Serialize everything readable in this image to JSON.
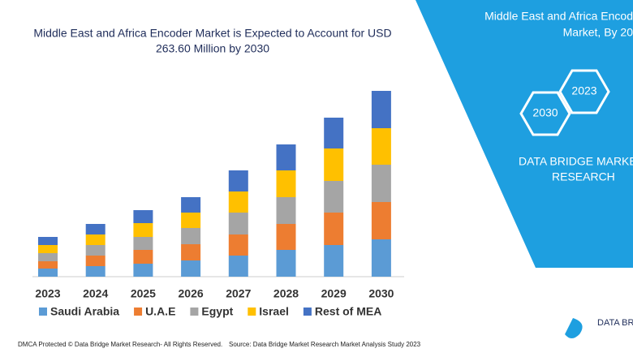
{
  "chart_data": {
    "type": "bar",
    "stacked": true,
    "title": "Middle East and Africa Encoder Market is Expected to Account for USD",
    "subtitle": "263.60 Million by 2030",
    "categories": [
      "2023",
      "2024",
      "2025",
      "2026",
      "2027",
      "2028",
      "2029",
      "2030"
    ],
    "series": [
      {
        "name": "Saudi Arabia",
        "color": "#5b9bd5",
        "values": [
          10,
          13,
          16,
          20,
          26,
          33,
          39,
          46
        ]
      },
      {
        "name": "U.A.E",
        "color": "#ed7d31",
        "values": [
          9,
          13,
          17,
          20,
          26,
          32,
          40,
          46
        ]
      },
      {
        "name": "Egypt",
        "color": "#a5a5a5",
        "values": [
          10,
          13,
          16,
          20,
          27,
          33,
          39,
          46
        ]
      },
      {
        "name": "Israel",
        "color": "#ffc000",
        "values": [
          10,
          13,
          17,
          19,
          26,
          33,
          40,
          45
        ]
      },
      {
        "name": "Rest of MEA",
        "color": "#4472c4",
        "values": [
          10,
          13,
          16,
          19,
          26,
          32,
          38,
          46
        ]
      }
    ],
    "legend": "bottom"
  },
  "panel": {
    "title_lines": [
      "Middle East and Africa Encod",
      "Market, By 20"
    ],
    "hexagons": [
      "2023",
      "2030"
    ],
    "brand_lines": [
      "DATA BRIDGE MARKE",
      "RESEARCH"
    ],
    "logo": "DATA BRI"
  },
  "footer": {
    "left": "DMCA Protected © Data Bridge Market Research- All Rights Reserved.",
    "right": "Source: Data Bridge Market Research  Market Analysis Study 2023"
  }
}
